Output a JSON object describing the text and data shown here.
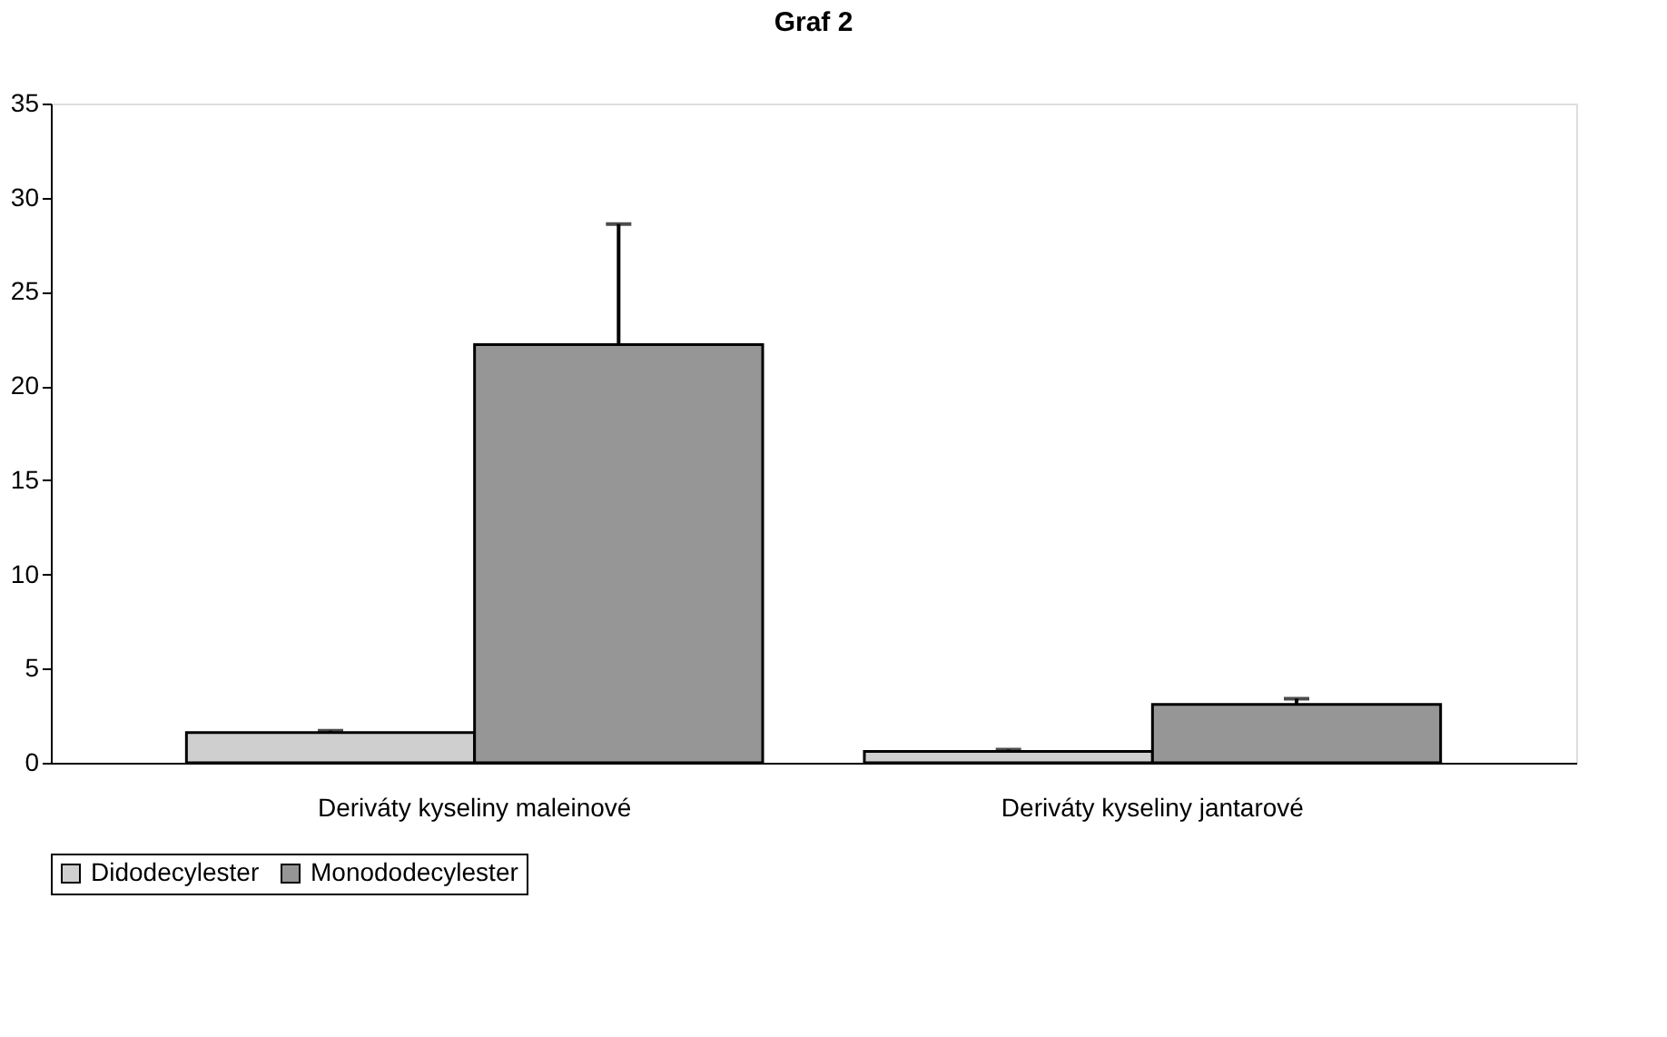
{
  "chart_data": {
    "type": "bar",
    "title": "Graf 2",
    "categories": [
      "Deriváty kyseliny maleinové",
      "Deriváty kyseliny jantarové"
    ],
    "series": [
      {
        "name": "Didodecylester",
        "color": "#cfcfcf",
        "values": [
          1.6,
          0.6
        ],
        "errors": [
          [
            1.6,
            1.7
          ],
          [
            0.6,
            0.7
          ]
        ]
      },
      {
        "name": "Monododecylester",
        "color": "#969696",
        "values": [
          22.2,
          3.1
        ],
        "errors": [
          [
            22.2,
            28.6
          ],
          [
            3.1,
            3.4
          ]
        ]
      }
    ],
    "ylim": [
      0,
      35
    ],
    "yticks": [
      0,
      5,
      10,
      15,
      20,
      25,
      30,
      35
    ],
    "grid": false,
    "legend": "bottom"
  }
}
